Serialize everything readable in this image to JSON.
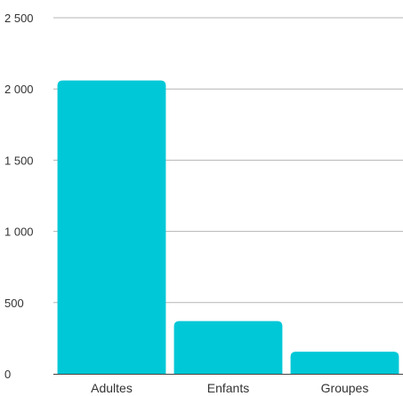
{
  "chart_data": {
    "type": "bar",
    "categories": [
      "Adultes",
      "Enfants",
      "Groupes"
    ],
    "values": [
      2060,
      370,
      155
    ],
    "ylim": [
      0,
      2500
    ],
    "yticks": [
      0,
      500,
      1000,
      1500,
      2000,
      2500
    ],
    "ytick_labels": [
      "0",
      "500",
      "1 000",
      "1 500",
      "2 000",
      "2 500"
    ],
    "grid": true,
    "bar_color": "#00c8d7",
    "title": "",
    "xlabel": "",
    "ylabel": ""
  }
}
